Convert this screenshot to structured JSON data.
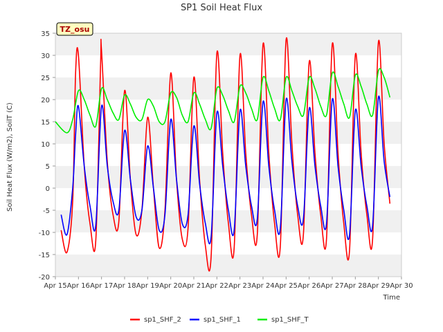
{
  "chart_data": {
    "type": "line",
    "title": "SP1 Soil Heat Flux",
    "xlabel": "Time",
    "ylabel": "Soil Heat Flux (W/m2), SoilT (C)",
    "annotation": "TZ_osu",
    "xlim": [
      "2015-04-15",
      "2015-04-30"
    ],
    "ylim": [
      -20,
      35
    ],
    "x_ticks": [
      "Apr 15",
      "Apr 16",
      "Apr 17",
      "Apr 18",
      "Apr 19",
      "Apr 20",
      "Apr 21",
      "Apr 22",
      "Apr 23",
      "Apr 24",
      "Apr 25",
      "Apr 26",
      "Apr 27",
      "Apr 28",
      "Apr 29",
      "Apr 30"
    ],
    "y_ticks": [
      -20,
      -15,
      -10,
      -5,
      0,
      5,
      10,
      15,
      20,
      25,
      30,
      35
    ],
    "grid": "horizontal alternating bands",
    "legend": "bottom",
    "series": [
      {
        "name": "sp1_SHF_2",
        "color": "#ff0000",
        "points": [
          [
            "2015-04-15 06:00",
            -9.5
          ],
          [
            "2015-04-15 12:00",
            -14.5
          ],
          [
            "2015-04-15 18:00",
            -3.0
          ],
          [
            "2015-04-15 21:00",
            26.0
          ],
          [
            "2015-04-16 00:00",
            30.0
          ],
          [
            "2015-04-16 06:00",
            5.0
          ],
          [
            "2015-04-16 12:00",
            -8.0
          ],
          [
            "2015-04-16 18:00",
            -12.0
          ],
          [
            "2015-04-16 23:00",
            28.0
          ],
          [
            "2015-04-17 00:00",
            31.0
          ],
          [
            "2015-04-17 06:00",
            6.0
          ],
          [
            "2015-04-17 12:00",
            -6.0
          ],
          [
            "2015-04-17 18:00",
            -7.5
          ],
          [
            "2015-04-18 00:00",
            22.0
          ],
          [
            "2015-04-18 06:00",
            2.0
          ],
          [
            "2015-04-18 12:00",
            -10.5
          ],
          [
            "2015-04-18 18:00",
            -5.0
          ],
          [
            "2015-04-19 00:00",
            16.0
          ],
          [
            "2015-04-19 06:00",
            0.0
          ],
          [
            "2015-04-19 12:00",
            -13.5
          ],
          [
            "2015-04-19 18:00",
            -5.0
          ],
          [
            "2015-04-20 00:00",
            26.0
          ],
          [
            "2015-04-20 06:00",
            2.0
          ],
          [
            "2015-04-20 12:00",
            -11.5
          ],
          [
            "2015-04-20 18:00",
            -9.0
          ],
          [
            "2015-04-21 00:00",
            25.0
          ],
          [
            "2015-04-21 06:00",
            2.0
          ],
          [
            "2015-04-21 12:00",
            -13.0
          ],
          [
            "2015-04-21 18:00",
            -15.5
          ],
          [
            "2015-04-22 00:00",
            30.5
          ],
          [
            "2015-04-22 06:00",
            8.0
          ],
          [
            "2015-04-22 12:00",
            -8.0
          ],
          [
            "2015-04-22 18:00",
            -13.5
          ],
          [
            "2015-04-23 00:00",
            30.0
          ],
          [
            "2015-04-23 06:00",
            8.0
          ],
          [
            "2015-04-23 12:00",
            -6.0
          ],
          [
            "2015-04-23 18:00",
            -10.5
          ],
          [
            "2015-04-24 00:00",
            32.5
          ],
          [
            "2015-04-24 06:00",
            8.0
          ],
          [
            "2015-04-24 12:00",
            -8.0
          ],
          [
            "2015-04-24 18:00",
            -13.0
          ],
          [
            "2015-04-25 00:00",
            33.5
          ],
          [
            "2015-04-25 06:00",
            10.0
          ],
          [
            "2015-04-25 12:00",
            -6.0
          ],
          [
            "2015-04-25 18:00",
            -10.5
          ],
          [
            "2015-04-26 00:00",
            28.5
          ],
          [
            "2015-04-26 06:00",
            8.0
          ],
          [
            "2015-04-26 12:00",
            -6.0
          ],
          [
            "2015-04-26 18:00",
            -11.5
          ],
          [
            "2015-04-27 00:00",
            32.5
          ],
          [
            "2015-04-27 06:00",
            8.0
          ],
          [
            "2015-04-27 12:00",
            -8.0
          ],
          [
            "2015-04-27 18:00",
            -14.0
          ],
          [
            "2015-04-28 00:00",
            30.0
          ],
          [
            "2015-04-28 06:00",
            8.0
          ],
          [
            "2015-04-28 12:00",
            -6.0
          ],
          [
            "2015-04-28 18:00",
            -11.5
          ],
          [
            "2015-04-29 00:00",
            33.0
          ],
          [
            "2015-04-29 06:00",
            10.0
          ],
          [
            "2015-04-29 12:00",
            -3.5
          ]
        ]
      },
      {
        "name": "sp1_SHF_1",
        "color": "#0000ff",
        "points": [
          [
            "2015-04-15 06:00",
            -6.0
          ],
          [
            "2015-04-15 12:00",
            -10.5
          ],
          [
            "2015-04-15 18:00",
            0.0
          ],
          [
            "2015-04-15 21:00",
            12.0
          ],
          [
            "2015-04-16 00:00",
            18.5
          ],
          [
            "2015-04-16 06:00",
            5.0
          ],
          [
            "2015-04-16 12:00",
            -4.0
          ],
          [
            "2015-04-16 18:00",
            -8.5
          ],
          [
            "2015-04-17 00:00",
            18.5
          ],
          [
            "2015-04-17 06:00",
            5.0
          ],
          [
            "2015-04-17 12:00",
            -3.0
          ],
          [
            "2015-04-17 18:00",
            -5.0
          ],
          [
            "2015-04-18 00:00",
            13.0
          ],
          [
            "2015-04-18 06:00",
            2.0
          ],
          [
            "2015-04-18 12:00",
            -6.5
          ],
          [
            "2015-04-18 18:00",
            -5.0
          ],
          [
            "2015-04-19 00:00",
            9.5
          ],
          [
            "2015-04-19 06:00",
            0.0
          ],
          [
            "2015-04-19 12:00",
            -9.5
          ],
          [
            "2015-04-19 18:00",
            -6.0
          ],
          [
            "2015-04-20 00:00",
            15.5
          ],
          [
            "2015-04-20 06:00",
            2.0
          ],
          [
            "2015-04-20 12:00",
            -8.0
          ],
          [
            "2015-04-20 18:00",
            -6.0
          ],
          [
            "2015-04-21 00:00",
            14.0
          ],
          [
            "2015-04-21 06:00",
            1.0
          ],
          [
            "2015-04-21 12:00",
            -8.0
          ],
          [
            "2015-04-21 18:00",
            -11.0
          ],
          [
            "2015-04-22 00:00",
            17.0
          ],
          [
            "2015-04-22 06:00",
            5.0
          ],
          [
            "2015-04-22 12:00",
            -5.0
          ],
          [
            "2015-04-22 18:00",
            -9.5
          ],
          [
            "2015-04-23 00:00",
            17.5
          ],
          [
            "2015-04-23 06:00",
            5.0
          ],
          [
            "2015-04-23 12:00",
            -4.0
          ],
          [
            "2015-04-23 18:00",
            -7.0
          ],
          [
            "2015-04-24 00:00",
            19.5
          ],
          [
            "2015-04-24 06:00",
            5.0
          ],
          [
            "2015-04-24 12:00",
            -5.0
          ],
          [
            "2015-04-24 18:00",
            -9.0
          ],
          [
            "2015-04-25 00:00",
            20.0
          ],
          [
            "2015-04-25 06:00",
            6.0
          ],
          [
            "2015-04-25 12:00",
            -4.0
          ],
          [
            "2015-04-25 18:00",
            -7.0
          ],
          [
            "2015-04-26 00:00",
            18.0
          ],
          [
            "2015-04-26 06:00",
            5.0
          ],
          [
            "2015-04-26 12:00",
            -4.0
          ],
          [
            "2015-04-26 18:00",
            -8.0
          ],
          [
            "2015-04-27 00:00",
            20.0
          ],
          [
            "2015-04-27 06:00",
            5.0
          ],
          [
            "2015-04-27 12:00",
            -5.0
          ],
          [
            "2015-04-27 18:00",
            -10.5
          ],
          [
            "2015-04-28 00:00",
            17.5
          ],
          [
            "2015-04-28 06:00",
            5.0
          ],
          [
            "2015-04-28 12:00",
            -4.0
          ],
          [
            "2015-04-28 18:00",
            -8.5
          ],
          [
            "2015-04-29 00:00",
            20.5
          ],
          [
            "2015-04-29 06:00",
            6.0
          ],
          [
            "2015-04-29 12:00",
            -2.0
          ]
        ]
      },
      {
        "name": "sp1_SHF_T",
        "color": "#00ee00",
        "points": [
          [
            "2015-04-15 00:00",
            15.0
          ],
          [
            "2015-04-15 12:00",
            12.5
          ],
          [
            "2015-04-15 18:00",
            15.5
          ],
          [
            "2015-04-16 00:00",
            22.0
          ],
          [
            "2015-04-16 06:00",
            20.0
          ],
          [
            "2015-04-16 12:00",
            16.5
          ],
          [
            "2015-04-16 18:00",
            14.0
          ],
          [
            "2015-04-17 00:00",
            22.5
          ],
          [
            "2015-04-17 06:00",
            20.0
          ],
          [
            "2015-04-17 12:00",
            17.0
          ],
          [
            "2015-04-17 18:00",
            15.5
          ],
          [
            "2015-04-18 00:00",
            21.0
          ],
          [
            "2015-04-18 06:00",
            19.0
          ],
          [
            "2015-04-18 12:00",
            16.0
          ],
          [
            "2015-04-18 18:00",
            15.5
          ],
          [
            "2015-04-19 00:00",
            20.0
          ],
          [
            "2015-04-19 06:00",
            18.5
          ],
          [
            "2015-04-19 12:00",
            15.0
          ],
          [
            "2015-04-19 18:00",
            15.0
          ],
          [
            "2015-04-20 00:00",
            21.5
          ],
          [
            "2015-04-20 06:00",
            20.5
          ],
          [
            "2015-04-20 12:00",
            16.5
          ],
          [
            "2015-04-20 18:00",
            15.0
          ],
          [
            "2015-04-21 00:00",
            21.5
          ],
          [
            "2015-04-21 06:00",
            19.0
          ],
          [
            "2015-04-21 12:00",
            15.5
          ],
          [
            "2015-04-21 18:00",
            13.5
          ],
          [
            "2015-04-22 00:00",
            22.5
          ],
          [
            "2015-04-22 06:00",
            21.0
          ],
          [
            "2015-04-22 12:00",
            17.5
          ],
          [
            "2015-04-22 18:00",
            15.0
          ],
          [
            "2015-04-23 00:00",
            23.0
          ],
          [
            "2015-04-23 06:00",
            21.5
          ],
          [
            "2015-04-23 12:00",
            18.0
          ],
          [
            "2015-04-23 18:00",
            15.5
          ],
          [
            "2015-04-24 00:00",
            25.0
          ],
          [
            "2015-04-24 06:00",
            22.0
          ],
          [
            "2015-04-24 12:00",
            18.0
          ],
          [
            "2015-04-24 18:00",
            15.5
          ],
          [
            "2015-04-25 00:00",
            25.0
          ],
          [
            "2015-04-25 06:00",
            22.0
          ],
          [
            "2015-04-25 12:00",
            18.5
          ],
          [
            "2015-04-25 18:00",
            16.5
          ],
          [
            "2015-04-26 00:00",
            25.0
          ],
          [
            "2015-04-26 06:00",
            22.5
          ],
          [
            "2015-04-26 12:00",
            18.5
          ],
          [
            "2015-04-26 18:00",
            16.5
          ],
          [
            "2015-04-27 00:00",
            26.0
          ],
          [
            "2015-04-27 06:00",
            23.0
          ],
          [
            "2015-04-27 12:00",
            19.0
          ],
          [
            "2015-04-27 18:00",
            16.0
          ],
          [
            "2015-04-28 00:00",
            25.5
          ],
          [
            "2015-04-28 06:00",
            23.0
          ],
          [
            "2015-04-28 12:00",
            19.0
          ],
          [
            "2015-04-28 18:00",
            16.5
          ],
          [
            "2015-04-29 00:00",
            26.5
          ],
          [
            "2015-04-29 06:00",
            25.0
          ],
          [
            "2015-04-29 12:00",
            20.5
          ]
        ]
      }
    ]
  }
}
